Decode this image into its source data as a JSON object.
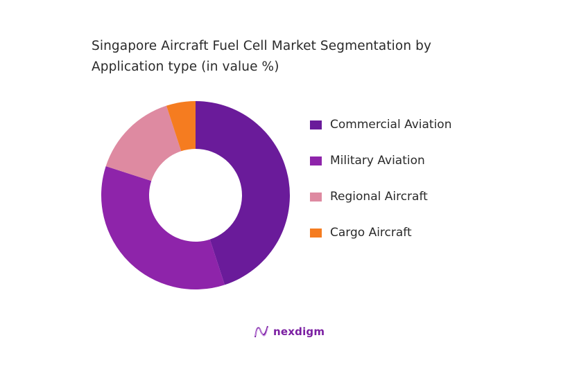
{
  "chart_data": {
    "type": "pie",
    "subtype": "donut",
    "title": "Singapore Aircraft Fuel Cell Market Segmentation by Application type (in value %)",
    "categories": [
      "Commercial Aviation",
      "Military Aviation",
      "Regional Aircraft",
      "Cargo Aircraft"
    ],
    "values": [
      45,
      35,
      15,
      5
    ],
    "colors": [
      "#6a1b9a",
      "#8e24aa",
      "#de8aa1",
      "#f57c20"
    ],
    "legend_position": "right",
    "start_angle": "top, clockwise"
  },
  "title_lines": [
    "Singapore Aircraft Fuel Cell Market Segmentation by",
    "Application type (in value %)"
  ],
  "legend": {
    "items": [
      {
        "label": "Commercial Aviation",
        "color": "#6a1b9a"
      },
      {
        "label": "Military Aviation",
        "color": "#8e24aa"
      },
      {
        "label": "Regional Aircraft",
        "color": "#de8aa1"
      },
      {
        "label": "Cargo Aircraft",
        "color": "#f57c20"
      }
    ]
  },
  "branding": {
    "logo_text": "nexdigm"
  }
}
